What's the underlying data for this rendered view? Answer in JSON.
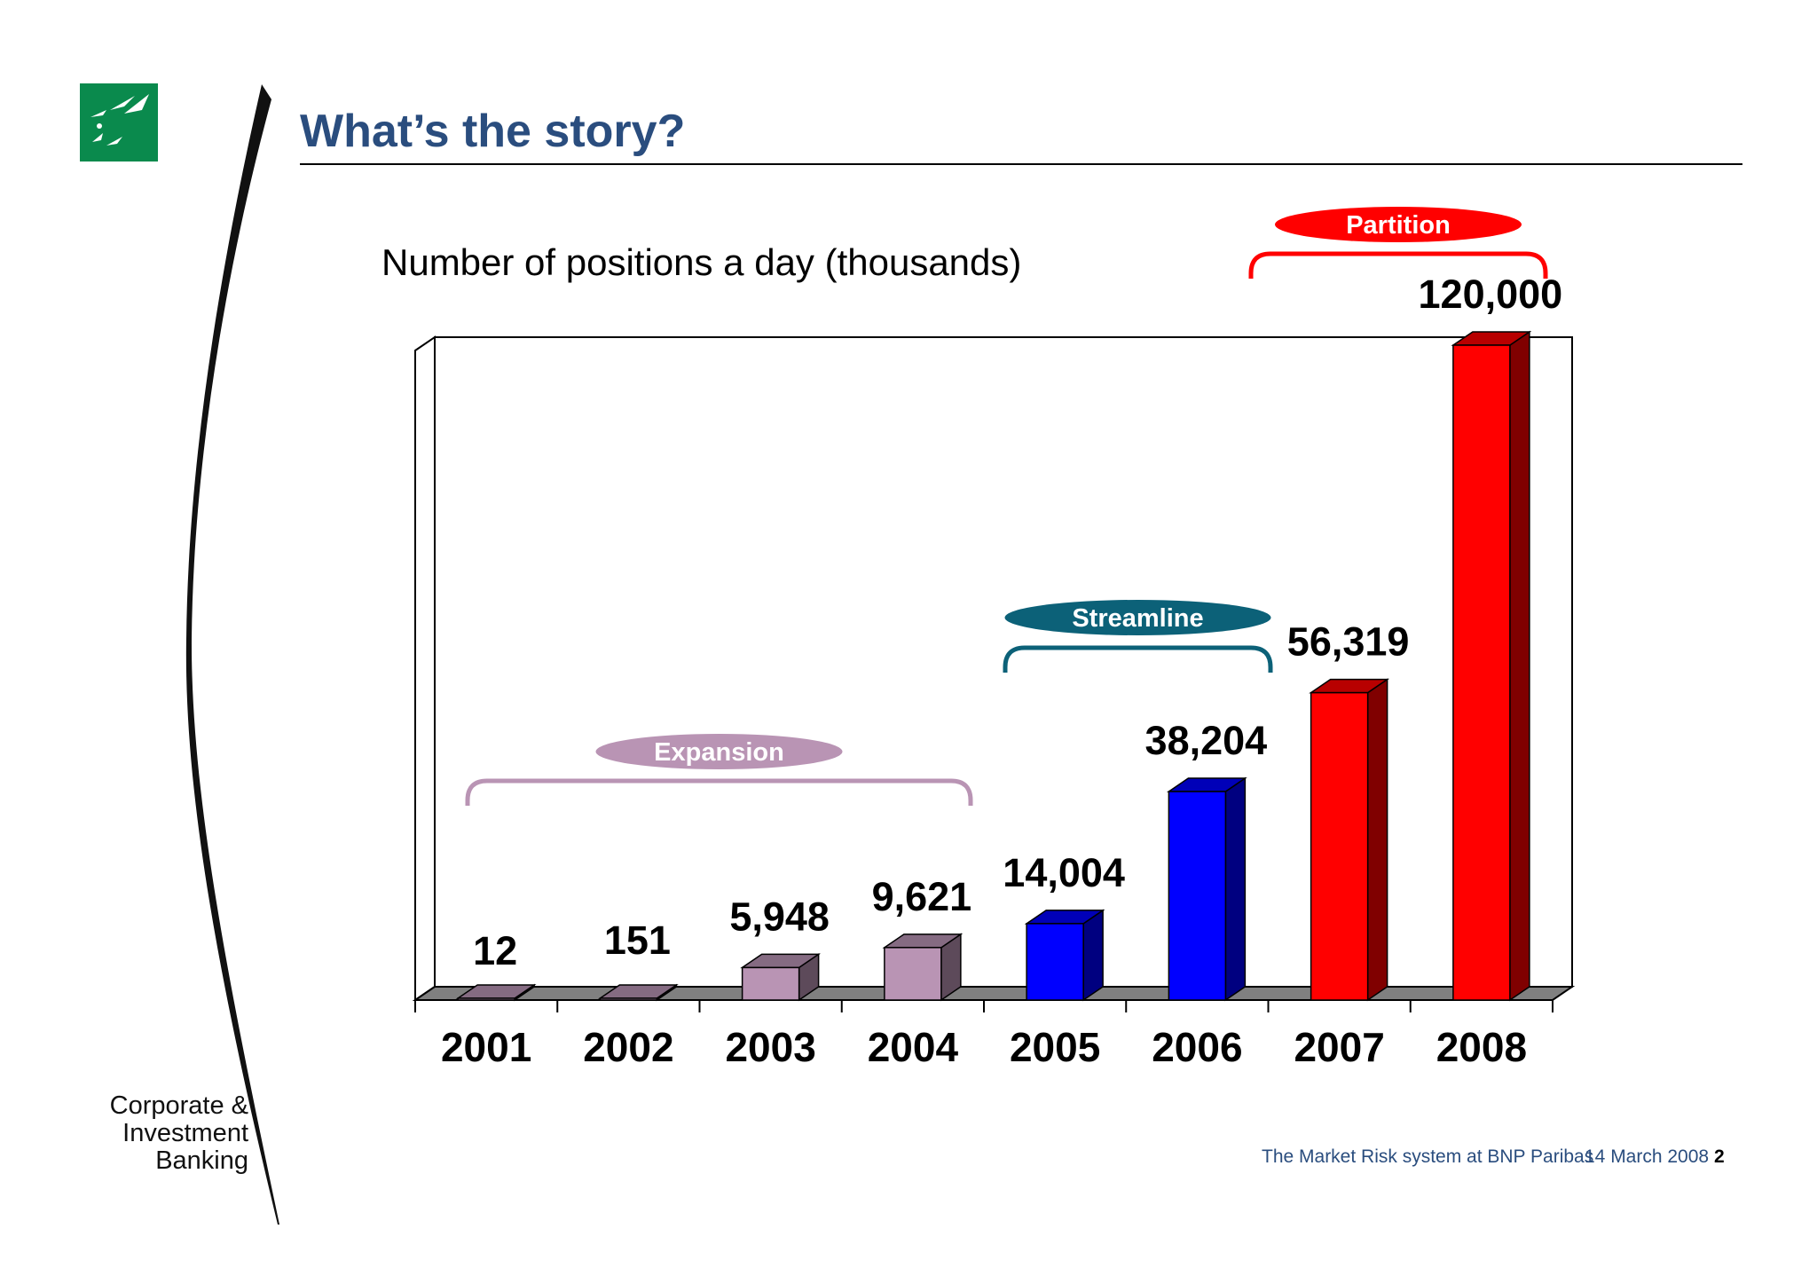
{
  "slide": {
    "title": "What’s the story?",
    "brand_lines": [
      "Corporate &",
      "Investment",
      "Banking"
    ],
    "footer_text": "The Market Risk system at BNP Paribas",
    "footer_date": "14 March 2008",
    "page_number": "2"
  },
  "colors": {
    "title": "#2a4d7e",
    "expansion": "#b994b4",
    "streamline_bar": "#0000ff",
    "streamline_label": "#0c6178",
    "partition": "#ff0000",
    "floor": "#808080",
    "logo_green": "#0a8a4d"
  },
  "chart_data": {
    "type": "bar",
    "title": "Number of positions a day (thousands)",
    "categories": [
      "2001",
      "2002",
      "2003",
      "2004",
      "2005",
      "2006",
      "2007",
      "2008"
    ],
    "values": [
      12,
      151,
      5948,
      9621,
      14004,
      38204,
      56319,
      120000
    ],
    "value_labels": [
      "12",
      "151",
      "5,948",
      "9,621",
      "14,004",
      "38,204",
      "56,319",
      "120,000"
    ],
    "phases": [
      {
        "name": "Expansion",
        "categories": [
          "2001",
          "2002",
          "2003",
          "2004"
        ]
      },
      {
        "name": "Streamline",
        "categories": [
          "2005",
          "2006"
        ]
      },
      {
        "name": "Partition",
        "categories": [
          "2007",
          "2008"
        ]
      }
    ],
    "style": "3d-column",
    "grid": false,
    "legend": "none"
  }
}
